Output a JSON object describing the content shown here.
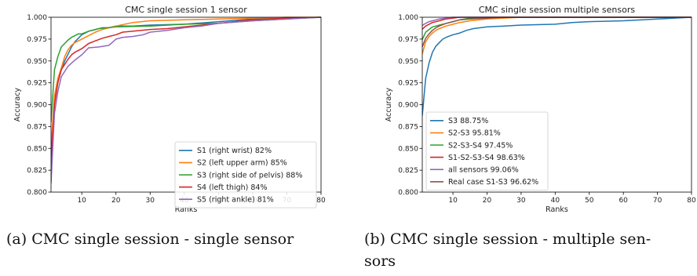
{
  "chart_data": [
    {
      "type": "line",
      "title": "CMC single session 1 sensor",
      "xlabel": "Ranks",
      "ylabel": "Accuracy",
      "xlim": [
        1,
        80
      ],
      "ylim": [
        0.8,
        1.0
      ],
      "xticks": [
        10,
        20,
        30,
        40,
        50,
        60,
        70,
        80
      ],
      "yticks": [
        "0.800",
        "0.825",
        "0.850",
        "0.875",
        "0.900",
        "0.925",
        "0.950",
        "0.975",
        "1.000"
      ],
      "legend_position": "bottom-right",
      "series": [
        {
          "name": "S1 (right wrist) 82%",
          "color": "#1f77b4",
          "x": [
            1,
            2,
            3,
            4,
            5,
            6,
            7,
            8,
            9,
            10,
            12,
            14,
            16,
            18,
            20,
            25,
            30,
            40,
            50,
            60,
            70,
            80
          ],
          "y": [
            0.82,
            0.905,
            0.925,
            0.94,
            0.95,
            0.958,
            0.966,
            0.972,
            0.976,
            0.98,
            0.984,
            0.986,
            0.988,
            0.988,
            0.99,
            0.99,
            0.991,
            0.992,
            0.995,
            0.998,
            0.999,
            1.0
          ]
        },
        {
          "name": "S2 (left upper arm) 85%",
          "color": "#ff7f0e",
          "x": [
            1,
            2,
            3,
            4,
            5,
            6,
            7,
            8,
            10,
            12,
            14,
            16,
            18,
            20,
            25,
            30,
            40,
            50,
            60,
            70,
            80
          ],
          "y": [
            0.85,
            0.91,
            0.93,
            0.942,
            0.955,
            0.963,
            0.968,
            0.971,
            0.975,
            0.979,
            0.983,
            0.986,
            0.988,
            0.99,
            0.994,
            0.996,
            0.997,
            0.998,
            0.999,
            1.0,
            1.0
          ]
        },
        {
          "name": "S3 (right side of pelvis) 88%",
          "color": "#2ca02c",
          "x": [
            1,
            2,
            3,
            4,
            5,
            6,
            7,
            8,
            9,
            10,
            12,
            15,
            20,
            30,
            40,
            50,
            60,
            70,
            80
          ],
          "y": [
            0.88,
            0.94,
            0.955,
            0.966,
            0.97,
            0.974,
            0.977,
            0.979,
            0.981,
            0.981,
            0.984,
            0.987,
            0.989,
            0.99,
            0.992,
            0.993,
            0.996,
            0.998,
            1.0
          ]
        },
        {
          "name": "S4 (left thigh) 84%",
          "color": "#d62728",
          "x": [
            1,
            2,
            3,
            4,
            5,
            6,
            7,
            8,
            10,
            12,
            14,
            16,
            18,
            20,
            22,
            25,
            30,
            35,
            40,
            50,
            60,
            70,
            80
          ],
          "y": [
            0.84,
            0.9,
            0.925,
            0.94,
            0.946,
            0.952,
            0.957,
            0.96,
            0.964,
            0.97,
            0.973,
            0.976,
            0.978,
            0.98,
            0.983,
            0.984,
            0.986,
            0.987,
            0.989,
            0.993,
            0.997,
            0.999,
            1.0
          ]
        },
        {
          "name": "S5 (right ankle) 81%",
          "color": "#9467bd",
          "x": [
            1,
            2,
            3,
            4,
            5,
            6,
            8,
            10,
            12,
            15,
            18,
            20,
            22,
            25,
            28,
            30,
            35,
            40,
            45,
            50,
            60,
            70,
            80
          ],
          "y": [
            0.81,
            0.89,
            0.915,
            0.932,
            0.938,
            0.944,
            0.951,
            0.957,
            0.965,
            0.966,
            0.968,
            0.975,
            0.977,
            0.978,
            0.98,
            0.983,
            0.985,
            0.988,
            0.99,
            0.993,
            0.996,
            0.998,
            1.0
          ]
        }
      ]
    },
    {
      "type": "line",
      "title": "CMC single session multiple sensors",
      "xlabel": "Ranks",
      "ylabel": "Accuracy",
      "xlim": [
        1,
        80
      ],
      "ylim": [
        0.8,
        1.0
      ],
      "xticks": [
        10,
        20,
        30,
        40,
        50,
        60,
        70,
        80
      ],
      "yticks": [
        "0.800",
        "0.825",
        "0.850",
        "0.875",
        "0.900",
        "0.925",
        "0.950",
        "0.975",
        "1.000"
      ],
      "legend_position": "bottom-left",
      "series": [
        {
          "name": "S3 88.75%",
          "color": "#1f77b4",
          "x": [
            1,
            2,
            3,
            4,
            5,
            6,
            7,
            8,
            10,
            12,
            14,
            16,
            18,
            20,
            25,
            30,
            40,
            45,
            50,
            60,
            70,
            80
          ],
          "y": [
            0.8875,
            0.93,
            0.948,
            0.96,
            0.967,
            0.971,
            0.975,
            0.977,
            0.98,
            0.982,
            0.985,
            0.987,
            0.988,
            0.989,
            0.99,
            0.991,
            0.992,
            0.994,
            0.995,
            0.996,
            0.998,
            1.0
          ]
        },
        {
          "name": "S2-S3 95.81%",
          "color": "#ff7f0e",
          "x": [
            1,
            2,
            3,
            4,
            5,
            6,
            8,
            10,
            12,
            15,
            20,
            25,
            30,
            40,
            80
          ],
          "y": [
            0.958,
            0.972,
            0.978,
            0.982,
            0.985,
            0.987,
            0.99,
            0.992,
            0.994,
            0.996,
            0.998,
            0.999,
            1.0,
            1.0,
            1.0
          ]
        },
        {
          "name": "S2-S3-S4 97.45%",
          "color": "#2ca02c",
          "x": [
            1,
            2,
            3,
            4,
            5,
            6,
            8,
            10,
            12,
            15,
            20,
            80
          ],
          "y": [
            0.9745,
            0.983,
            0.986,
            0.989,
            0.99,
            0.991,
            0.993,
            0.995,
            0.997,
            0.999,
            1.0,
            1.0
          ]
        },
        {
          "name": "S1-S2-S3-S4 98.63%",
          "color": "#d62728",
          "x": [
            1,
            2,
            3,
            4,
            5,
            6,
            8,
            10,
            12,
            15,
            80
          ],
          "y": [
            0.9863,
            0.99,
            0.992,
            0.994,
            0.995,
            0.996,
            0.998,
            0.999,
            1.0,
            1.0,
            1.0
          ]
        },
        {
          "name": "all sensors 99.06%",
          "color": "#9467bd",
          "x": [
            1,
            2,
            3,
            4,
            5,
            6,
            8,
            10,
            15,
            80
          ],
          "y": [
            0.9906,
            0.993,
            0.995,
            0.996,
            0.997,
            0.998,
            0.999,
            1.0,
            1.0,
            1.0
          ]
        },
        {
          "name": "Real case S1-S3 96.62%",
          "color": "#8c564b",
          "x": [
            1,
            2,
            3,
            4,
            5,
            6,
            8,
            10,
            12,
            15,
            20,
            25,
            80
          ],
          "y": [
            0.9662,
            0.976,
            0.981,
            0.985,
            0.988,
            0.99,
            0.993,
            0.995,
            0.997,
            0.998,
            0.999,
            1.0,
            1.0
          ]
        }
      ]
    }
  ],
  "captions": [
    {
      "label": "(a) CMC single session - single sensor"
    },
    {
      "line1": "(b) CMC single session - multiple sen-",
      "line2": "sors"
    }
  ]
}
